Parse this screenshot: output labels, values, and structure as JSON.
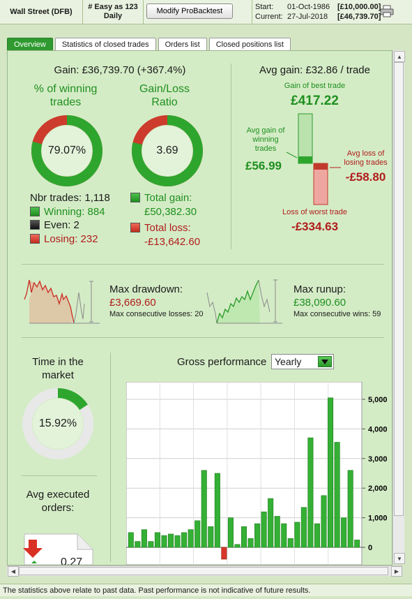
{
  "header": {
    "instrument": "Wall Street (DFB)",
    "strategy_line1": "# Easy as 123",
    "strategy_line2": "Daily",
    "modify_button": "Modify ProBacktest",
    "start_label": "Start:",
    "start_date": "01-Oct-1986",
    "start_value": "[£10,000.00]",
    "current_label": "Current:",
    "current_date": "27-Jul-2018",
    "current_value": "[£46,739.70]",
    "print_icon": "printer-icon"
  },
  "tabs": [
    {
      "label": "Overview",
      "active": true
    },
    {
      "label": "Statistics of closed trades",
      "active": false
    },
    {
      "label": "Orders list",
      "active": false
    },
    {
      "label": "Closed positions list",
      "active": false
    }
  ],
  "overview": {
    "gain": "Gain: £36,739.70 (+367.4%)",
    "winning_title": "% of winning trades",
    "winning_pct": "79.07%",
    "winning_fraction": 0.7907,
    "ratio_title": "Gain/Loss Ratio",
    "ratio_value": "3.69",
    "ratio_fraction": 0.787,
    "nbr_trades": "Nbr trades: 1,118",
    "winning": "Winning: 884",
    "even": "Even: 2",
    "losing": "Losing: 232",
    "total_gain_label": "Total gain:",
    "total_gain": "£50,382.30",
    "total_loss_label": "Total loss:",
    "total_loss": "-£13,642.60",
    "avg_gain_trade": "Avg gain: £32.86 / trade",
    "best_trade_label": "Gain of best trade",
    "best_trade": "£417.22",
    "avg_gain_win_label": "Avg gain of winning trades",
    "avg_gain_win": "£56.99",
    "avg_loss_label": "Avg loss of losing trades",
    "avg_loss": "-£58.80",
    "worst_trade_label": "Loss of worst trade",
    "worst_trade": "-£334.63",
    "max_drawdown_label": "Max drawdown:",
    "max_drawdown": "£3,669.60",
    "max_consec_losses": "Max consecutive losses: 20",
    "max_runup_label": "Max runup:",
    "max_runup": "£38,090.60",
    "max_consec_wins": "Max consecutive wins: 59",
    "time_in_market_title": "Time in the market",
    "time_in_market": "15.92%",
    "time_in_market_fraction": 0.1592,
    "avg_orders_title": "Avg executed orders:",
    "avg_orders_value": "0.27",
    "gross_perf_title": "Gross performance",
    "gross_perf_select": "Yearly"
  },
  "colors": {
    "green": "#1f8f1f",
    "red": "#b01c1c",
    "panel": "#d4ecc6"
  },
  "chart_data": {
    "type": "bar",
    "title": "Gross performance",
    "ylim": [
      -400,
      5400
    ],
    "yticks": [
      "5,000",
      "4,000",
      "3,000",
      "2,000",
      "1,000",
      "0"
    ],
    "values": [
      500,
      200,
      600,
      200,
      500,
      400,
      450,
      400,
      500,
      600,
      900,
      2600,
      700,
      2500,
      -400,
      1000,
      100,
      700,
      300,
      800,
      1200,
      1650,
      1050,
      800,
      300,
      850,
      1350,
      3700,
      800,
      1750,
      5050,
      3550,
      1000,
      2600,
      250
    ],
    "grid": true
  },
  "footer": {
    "disclaimer": "The statistics above relate to past data. Past performance is not indicative of future results."
  }
}
